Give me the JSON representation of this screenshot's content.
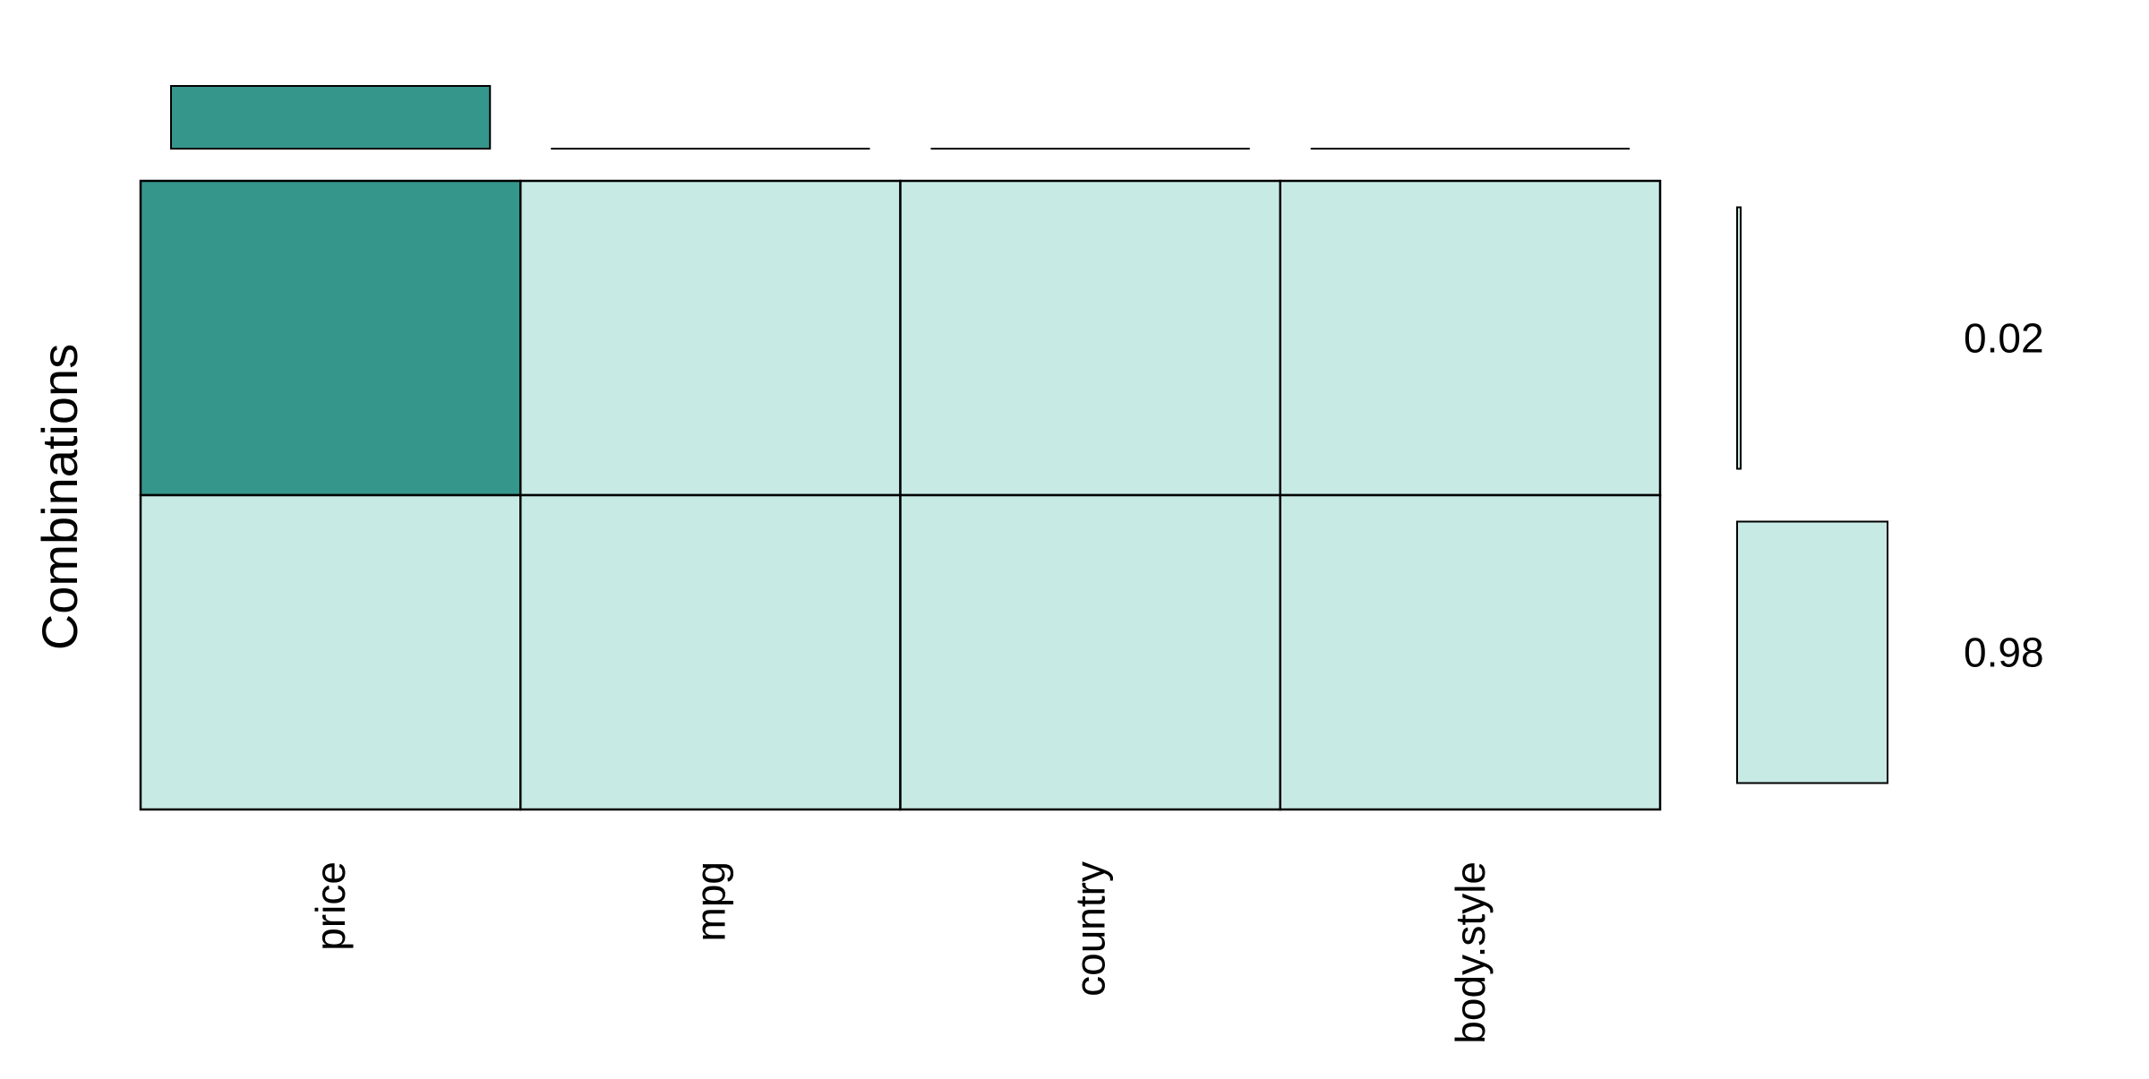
{
  "chart_data": {
    "type": "heatmap",
    "title": "",
    "ylabel": "Combinations",
    "variables": [
      "price",
      "mpg",
      "country",
      "body.style"
    ],
    "missing_proportion": [
      0.02,
      0,
      0,
      0
    ],
    "combinations": [
      {
        "pattern": [
          1,
          0,
          0,
          0
        ],
        "proportion": 0.02,
        "label": "0.02"
      },
      {
        "pattern": [
          0,
          0,
          0,
          0
        ],
        "proportion": 0.98,
        "label": "0.98"
      }
    ],
    "colors": {
      "missing": "#35968C",
      "present": "#C7EAE4",
      "stroke": "#000000",
      "background": "#FFFFFF"
    }
  }
}
